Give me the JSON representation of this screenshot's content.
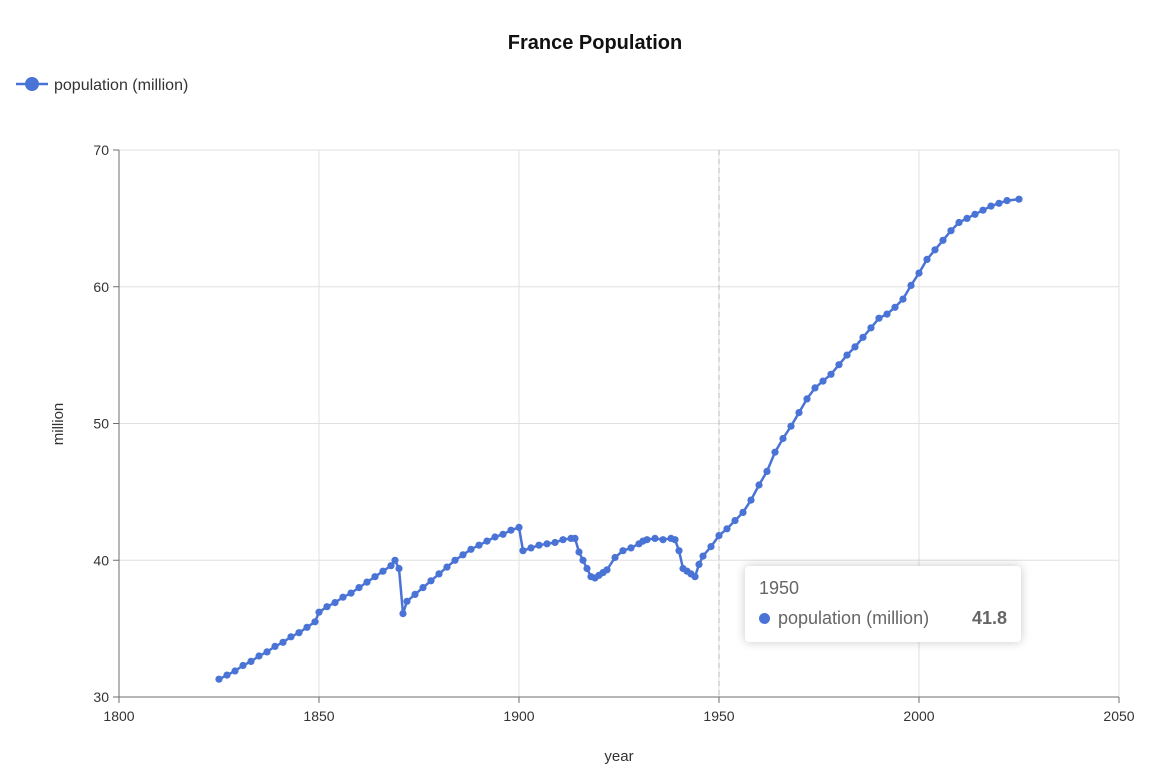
{
  "chart_data": {
    "type": "line",
    "title": "France Population",
    "xlabel": "year",
    "ylabel": "million",
    "xlim": [
      1800,
      2050
    ],
    "ylim": [
      30,
      70
    ],
    "xticks": [
      1800,
      1850,
      1900,
      1950,
      2000,
      2050
    ],
    "yticks": [
      30,
      40,
      50,
      60,
      70
    ],
    "grid": true,
    "legend_position": "top-left",
    "series": [
      {
        "name": "population (million)",
        "color": "#4a73d6",
        "x": [
          1825,
          1827,
          1829,
          1831,
          1833,
          1835,
          1837,
          1839,
          1841,
          1843,
          1845,
          1847,
          1849,
          1850,
          1852,
          1854,
          1856,
          1858,
          1860,
          1862,
          1864,
          1866,
          1868,
          1869,
          1870,
          1871,
          1872,
          1874,
          1876,
          1878,
          1880,
          1882,
          1884,
          1886,
          1888,
          1890,
          1892,
          1894,
          1896,
          1898,
          1900,
          1901,
          1903,
          1905,
          1907,
          1909,
          1911,
          1913,
          1914,
          1915,
          1916,
          1917,
          1918,
          1919,
          1920,
          1921,
          1922,
          1924,
          1926,
          1928,
          1930,
          1931,
          1932,
          1934,
          1936,
          1938,
          1939,
          1940,
          1941,
          1942,
          1943,
          1944,
          1945,
          1946,
          1948,
          1950,
          1952,
          1954,
          1956,
          1958,
          1960,
          1962,
          1964,
          1966,
          1968,
          1970,
          1972,
          1974,
          1976,
          1978,
          1980,
          1982,
          1984,
          1986,
          1988,
          1990,
          1992,
          1994,
          1996,
          1998,
          2000,
          2002,
          2004,
          2006,
          2008,
          2010,
          2012,
          2014,
          2016,
          2018,
          2020,
          2022,
          2025
        ],
        "values": [
          31.3,
          31.6,
          31.9,
          32.3,
          32.6,
          33.0,
          33.3,
          33.7,
          34.0,
          34.4,
          34.7,
          35.1,
          35.5,
          36.2,
          36.6,
          36.9,
          37.3,
          37.6,
          38.0,
          38.4,
          38.8,
          39.2,
          39.6,
          40.0,
          39.4,
          36.1,
          37.0,
          37.5,
          38.0,
          38.5,
          39.0,
          39.5,
          40.0,
          40.4,
          40.8,
          41.1,
          41.4,
          41.7,
          41.9,
          42.2,
          42.4,
          40.7,
          40.9,
          41.1,
          41.2,
          41.3,
          41.5,
          41.6,
          41.6,
          40.6,
          40.0,
          39.4,
          38.8,
          38.7,
          38.9,
          39.1,
          39.3,
          40.2,
          40.7,
          40.9,
          41.2,
          41.4,
          41.5,
          41.6,
          41.5,
          41.6,
          41.5,
          40.7,
          39.4,
          39.2,
          39.0,
          38.8,
          39.7,
          40.3,
          41.0,
          41.8,
          42.3,
          42.9,
          43.5,
          44.4,
          45.5,
          46.5,
          47.9,
          48.9,
          49.8,
          50.8,
          51.8,
          52.6,
          53.1,
          53.6,
          54.3,
          55.0,
          55.6,
          56.3,
          57.0,
          57.7,
          58.0,
          58.5,
          59.1,
          60.1,
          61.0,
          62.0,
          62.7,
          63.4,
          64.1,
          64.7,
          65.0,
          65.3,
          65.6,
          65.9,
          66.1,
          66.3,
          66.4
        ]
      }
    ],
    "tooltip": {
      "title": "1950",
      "series_name": "population (million)",
      "value": "41.8",
      "hover_x": 1950
    },
    "colors": {
      "series": "#4a73d6",
      "grid": "#e0e0e0",
      "axis": "#6e6e6e",
      "text": "#333333",
      "hover_line": "#b8b8b8"
    }
  }
}
